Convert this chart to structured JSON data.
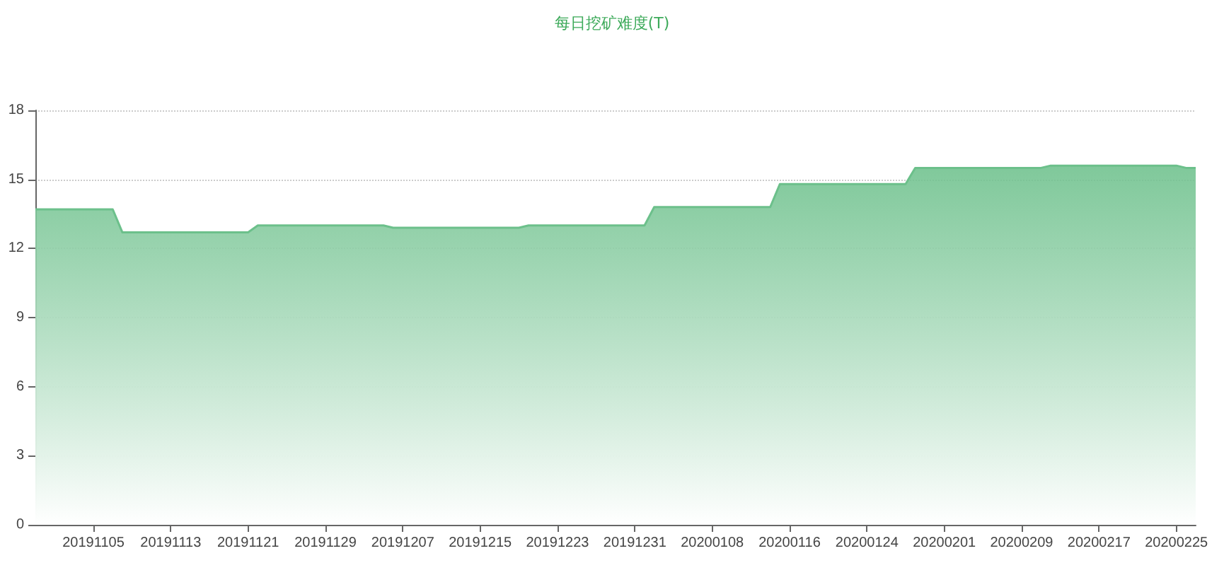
{
  "chart_data": {
    "type": "area",
    "title": "每日挖矿难度(T)",
    "categories": [
      null,
      null,
      null,
      null,
      null,
      null,
      "20191105",
      null,
      null,
      null,
      null,
      null,
      null,
      null,
      "20191113",
      null,
      null,
      null,
      null,
      null,
      null,
      null,
      "20191121",
      null,
      null,
      null,
      null,
      null,
      null,
      null,
      "20191129",
      null,
      null,
      null,
      null,
      null,
      null,
      null,
      "20191207",
      null,
      null,
      null,
      null,
      null,
      null,
      null,
      "20191215",
      null,
      null,
      null,
      null,
      null,
      null,
      null,
      "20191223",
      null,
      null,
      null,
      null,
      null,
      null,
      null,
      "20191231",
      null,
      null,
      null,
      null,
      null,
      null,
      null,
      "20200108",
      null,
      null,
      null,
      null,
      null,
      null,
      null,
      "20200116",
      null,
      null,
      null,
      null,
      null,
      null,
      null,
      "20200124",
      null,
      null,
      null,
      null,
      null,
      null,
      null,
      "20200201",
      null,
      null,
      null,
      null,
      null,
      null,
      null,
      "20200209",
      null,
      null,
      null,
      null,
      null,
      null,
      null,
      "20200217",
      null,
      null,
      null,
      null,
      null,
      null,
      null,
      "20200225",
      null,
      null
    ],
    "series": [
      {
        "color": "#6cc08b",
        "values": [
          13.7,
          13.7,
          13.7,
          13.7,
          13.7,
          13.7,
          13.7,
          13.7,
          13.7,
          12.7,
          12.7,
          12.7,
          12.7,
          12.7,
          12.7,
          12.7,
          12.7,
          12.7,
          12.7,
          12.7,
          12.7,
          12.7,
          12.7,
          13.0,
          13.0,
          13.0,
          13.0,
          13.0,
          13.0,
          13.0,
          13.0,
          13.0,
          13.0,
          13.0,
          13.0,
          13.0,
          13.0,
          12.9,
          12.9,
          12.9,
          12.9,
          12.9,
          12.9,
          12.9,
          12.9,
          12.9,
          12.9,
          12.9,
          12.9,
          12.9,
          12.9,
          13.0,
          13.0,
          13.0,
          13.0,
          13.0,
          13.0,
          13.0,
          13.0,
          13.0,
          13.0,
          13.0,
          13.0,
          13.0,
          13.8,
          13.8,
          13.8,
          13.8,
          13.8,
          13.8,
          13.8,
          13.8,
          13.8,
          13.8,
          13.8,
          13.8,
          13.8,
          14.8,
          14.8,
          14.8,
          14.8,
          14.8,
          14.8,
          14.8,
          14.8,
          14.8,
          14.8,
          14.8,
          14.8,
          14.8,
          14.8,
          15.5,
          15.5,
          15.5,
          15.5,
          15.5,
          15.5,
          15.5,
          15.5,
          15.5,
          15.5,
          15.5,
          15.5,
          15.5,
          15.5,
          15.6,
          15.6,
          15.6,
          15.6,
          15.6,
          15.6,
          15.6,
          15.6,
          15.6,
          15.6,
          15.6,
          15.6,
          15.6,
          15.6,
          15.5,
          15.5
        ]
      }
    ],
    "ylim": [
      0,
      18
    ],
    "yticks": [
      0,
      3,
      6,
      9,
      12,
      15,
      18
    ],
    "grid": "y",
    "marker": "none"
  }
}
